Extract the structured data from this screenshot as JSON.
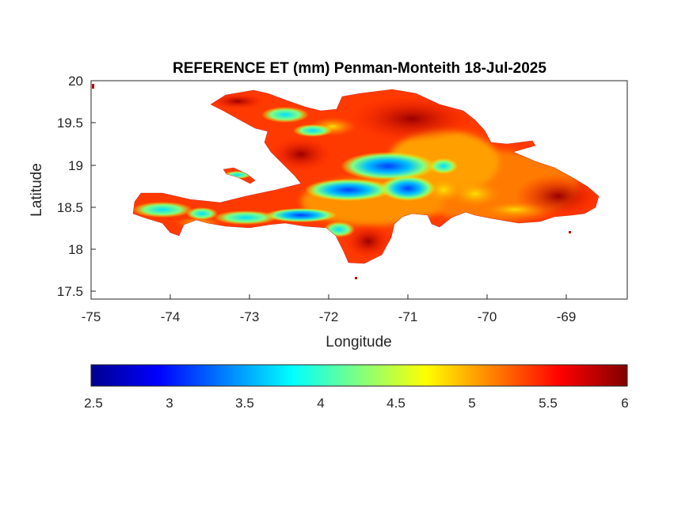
{
  "figure": {
    "title": "REFERENCE ET (mm) Penman-Monteith 18-Jul-2025",
    "xlabel": "Longitude",
    "ylabel": "Latitude",
    "x_ticks": [
      "-75",
      "-74",
      "-73",
      "-72",
      "-71",
      "-70",
      "-69"
    ],
    "y_ticks": [
      "17.5",
      "18",
      "18.5",
      "19",
      "19.5",
      "20"
    ],
    "colorbar_ticks": [
      "2.5",
      "3",
      "3.5",
      "4",
      "4.5",
      "5",
      "5.5",
      "6"
    ],
    "colormap": "jet",
    "colormap_stops": [
      "#00008f",
      "#0000ff",
      "#0080ff",
      "#00ffff",
      "#80ff80",
      "#ffff00",
      "#ff8000",
      "#ff0000",
      "#800000"
    ]
  },
  "map_data": {
    "type": "raster-map",
    "variable": "Reference ET",
    "units": "mm",
    "xlim": [
      -75,
      -68.2
    ],
    "ylim": [
      17.4,
      20
    ],
    "clim": [
      2.5,
      6
    ]
  }
}
